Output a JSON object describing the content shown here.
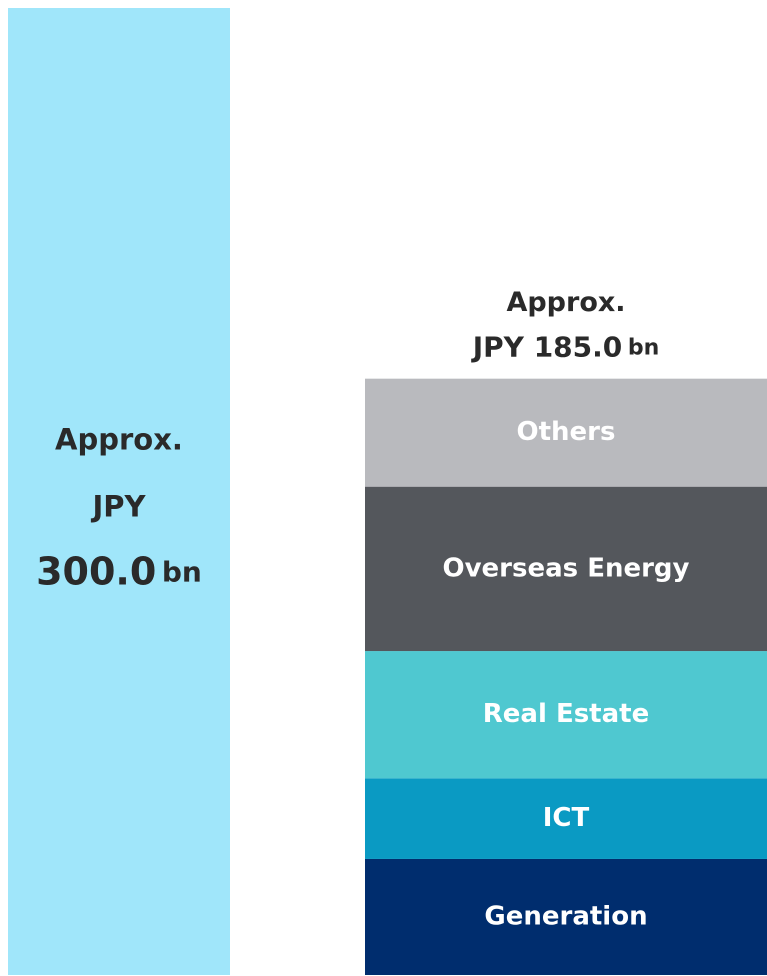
{
  "chart_data": {
    "type": "stacked_bar",
    "ylim": [
      0,
      300
    ],
    "bars": [
      {
        "total": 300,
        "total_label": [
          "Approx.",
          "JPY",
          "300.0",
          "bn"
        ],
        "segments": [
          {
            "value": 300,
            "color": "#a0e6fa"
          }
        ]
      },
      {
        "total": 185,
        "total_label": [
          "Approx.",
          "JPY 185.0",
          "bn"
        ],
        "segments": [
          {
            "name": "Generation",
            "value": 36,
            "color": "#002d6e"
          },
          {
            "name": "ICT",
            "value": 25,
            "color": "#0a9ac3"
          },
          {
            "name": "Real Estate",
            "value": 39.5,
            "color": "#4fc8d0"
          },
          {
            "name": "Overseas Energy",
            "value": 51,
            "color": "#54575c"
          },
          {
            "name": "Others",
            "value": 33.5,
            "color": "#b9babe"
          }
        ]
      }
    ]
  }
}
